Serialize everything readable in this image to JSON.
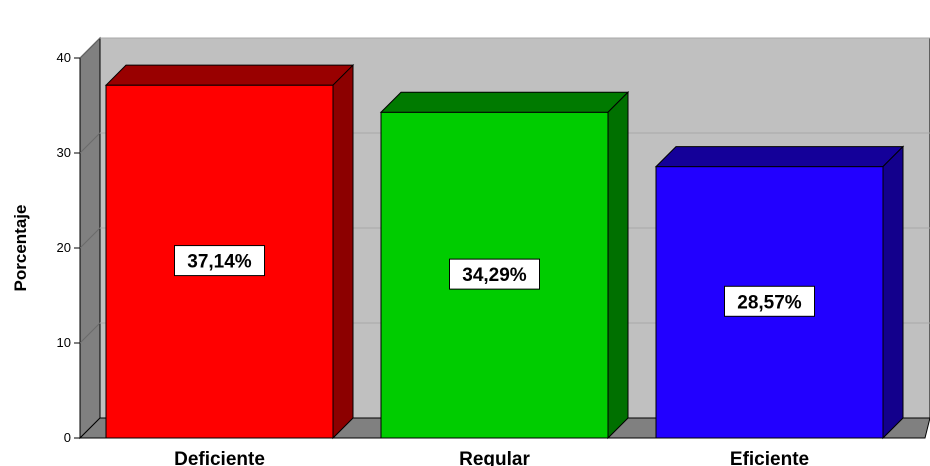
{
  "chart_data": {
    "type": "bar",
    "categories": [
      "Deficiente",
      "Regular",
      "Eficiente"
    ],
    "values": [
      37.14,
      34.29,
      28.57
    ],
    "data_labels": [
      "37,14%",
      "34,29%",
      "28,57%"
    ],
    "colors": [
      "#ff0000",
      "#00cc00",
      "#2200ff"
    ],
    "ylabel": "Porcentaje",
    "xlabel": "",
    "ylim": [
      0,
      40
    ],
    "yticks": [
      0,
      10,
      20,
      30,
      40
    ],
    "yticklabels": [
      "0",
      "10",
      "20",
      "30",
      "40"
    ],
    "grid": true,
    "style": "3d",
    "backwall_color": "#c0c0c0"
  }
}
